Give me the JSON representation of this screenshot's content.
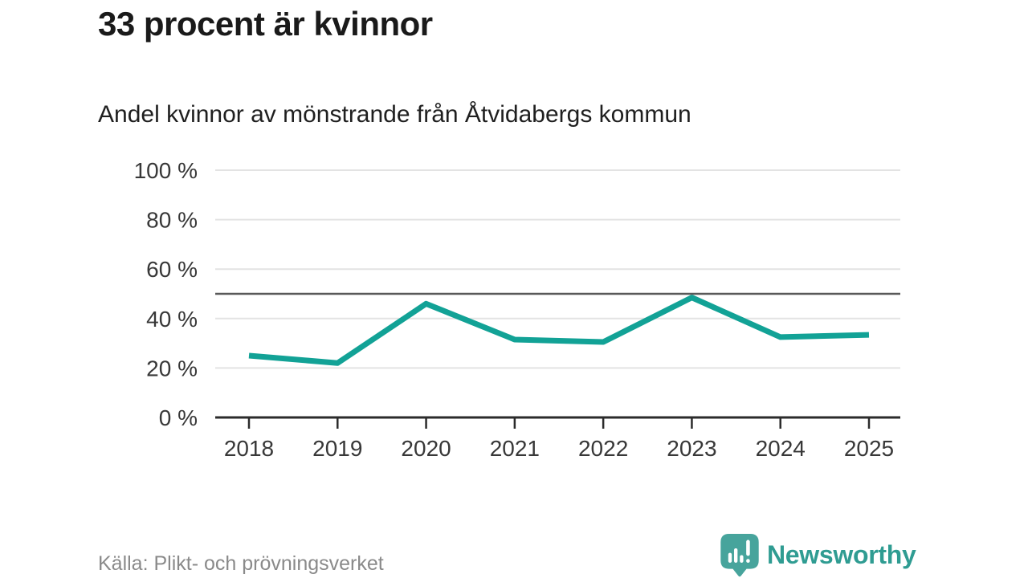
{
  "header": {
    "title": "33 procent är kvinnor",
    "subtitle": "Andel kvinnor av mönstrande från Åtvidabergs kommun"
  },
  "chart_data": {
    "type": "line",
    "title": "33 procent är kvinnor",
    "subtitle": "Andel kvinnor av mönstrande från Åtvidabergs kommun",
    "categories": [
      "2018",
      "2019",
      "2020",
      "2021",
      "2022",
      "2023",
      "2024",
      "2025"
    ],
    "series": [
      {
        "name": "Andel kvinnor av mönstrande",
        "values": [
          25,
          22,
          46,
          31.5,
          30.5,
          48.5,
          32.5,
          33.4
        ]
      }
    ],
    "xlabel": "",
    "ylabel": "",
    "ylim": [
      0,
      100
    ],
    "yticks": [
      0,
      20,
      40,
      60,
      80,
      100
    ],
    "ytick_suffix": " %",
    "reference_line": {
      "value": 50
    },
    "grid": true,
    "legend": "none",
    "line_color": "#12a296",
    "grid_color": "#e3e3e3",
    "reference_color": "#595959",
    "axis_color": "#2b2b2b",
    "axis_text_color": "#383838"
  },
  "footer": {
    "source": "Källa: Plikt- och prövningsverket",
    "logo_text": "Newsworthy"
  },
  "colors": {
    "background": "#ffffff",
    "title_text": "#1a1a1a",
    "subtitle_text": "#1f1f1f",
    "source_text": "#8a8a8a",
    "line_teal": "#12a296",
    "logo_bubble_teal": "#47a49c",
    "logo_text_teal": "#2f9c92"
  }
}
